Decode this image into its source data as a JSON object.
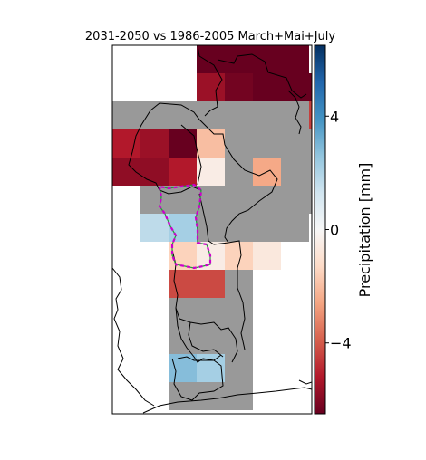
{
  "chart_data": {
    "type": "heatmap",
    "title": "2031-2050 vs 1986-2005 March+Mai+July",
    "colorbar": {
      "label": "Precipitation [mm]",
      "ticks": [
        "4",
        "0",
        "−4"
      ],
      "tick_values": [
        4,
        0,
        -4
      ],
      "range": [
        -6.5,
        6.5
      ],
      "colormap": "RdBu"
    },
    "masked_color": "#999999",
    "cells": [
      {
        "col": 3,
        "row": 0,
        "value": -6.5
      },
      {
        "col": 4,
        "row": 0,
        "value": -6.5
      },
      {
        "col": 5,
        "row": 0,
        "value": -6.5
      },
      {
        "col": 6,
        "row": 0,
        "value": -6.5
      },
      {
        "col": 3,
        "row": 1,
        "value": -5.6
      },
      {
        "col": 4,
        "row": 1,
        "value": -6.3
      },
      {
        "col": 5,
        "row": 1,
        "value": -6.5
      },
      {
        "col": 6,
        "row": 1,
        "value": -6.5
      },
      {
        "col": 7,
        "row": 1,
        "value": -6.5
      },
      {
        "col": 0,
        "row": 2,
        "value": null
      },
      {
        "col": 1,
        "row": 2,
        "value": null
      },
      {
        "col": 2,
        "row": 2,
        "value": null
      },
      {
        "col": 3,
        "row": 2,
        "value": null
      },
      {
        "col": 4,
        "row": 2,
        "value": null
      },
      {
        "col": 5,
        "row": 2,
        "value": null
      },
      {
        "col": 6,
        "row": 2,
        "value": null
      },
      {
        "col": 7,
        "row": 2,
        "value": -4.5
      },
      {
        "col": 0,
        "row": 3,
        "value": -5.2
      },
      {
        "col": 1,
        "row": 3,
        "value": -5.6
      },
      {
        "col": 2,
        "row": 3,
        "value": -6.5
      },
      {
        "col": 3,
        "row": 3,
        "value": -2.0
      },
      {
        "col": 4,
        "row": 3,
        "value": null
      },
      {
        "col": 5,
        "row": 3,
        "value": null
      },
      {
        "col": 6,
        "row": 3,
        "value": null
      },
      {
        "col": 7,
        "row": 3,
        "value": null
      },
      {
        "col": 0,
        "row": 4,
        "value": -5.8
      },
      {
        "col": 1,
        "row": 4,
        "value": -5.8
      },
      {
        "col": 2,
        "row": 4,
        "value": -5.2
      },
      {
        "col": 3,
        "row": 4,
        "value": -0.5
      },
      {
        "col": 4,
        "row": 4,
        "value": null
      },
      {
        "col": 5,
        "row": 4,
        "value": -2.5
      },
      {
        "col": 6,
        "row": 4,
        "value": null
      },
      {
        "col": 7,
        "row": 4,
        "value": null
      },
      {
        "col": 1,
        "row": 5,
        "value": null
      },
      {
        "col": 2,
        "row": 5,
        "value": null
      },
      {
        "col": 3,
        "row": 5,
        "value": null
      },
      {
        "col": 4,
        "row": 5,
        "value": null
      },
      {
        "col": 5,
        "row": 5,
        "value": null
      },
      {
        "col": 6,
        "row": 5,
        "value": null
      },
      {
        "col": 7,
        "row": 5,
        "value": null
      },
      {
        "col": 1,
        "row": 6,
        "value": 1.7
      },
      {
        "col": 2,
        "row": 6,
        "value": 2.2
      },
      {
        "col": 3,
        "row": 6,
        "value": null
      },
      {
        "col": 4,
        "row": 6,
        "value": null
      },
      {
        "col": 5,
        "row": 6,
        "value": null
      },
      {
        "col": 6,
        "row": 6,
        "value": null
      },
      {
        "col": 2,
        "row": 7,
        "value": -1.5
      },
      {
        "col": 3,
        "row": 7,
        "value": -0.5
      },
      {
        "col": 4,
        "row": 7,
        "value": -1.5
      },
      {
        "col": 5,
        "row": 7,
        "value": -0.7
      },
      {
        "col": 2,
        "row": 8,
        "value": -4.3
      },
      {
        "col": 3,
        "row": 8,
        "value": -4.3
      },
      {
        "col": 4,
        "row": 8,
        "value": null
      },
      {
        "col": 2,
        "row": 9,
        "value": null
      },
      {
        "col": 3,
        "row": 9,
        "value": null
      },
      {
        "col": 4,
        "row": 9,
        "value": null
      },
      {
        "col": 2,
        "row": 10,
        "value": null
      },
      {
        "col": 3,
        "row": 10,
        "value": null
      },
      {
        "col": 4,
        "row": 10,
        "value": null
      },
      {
        "col": 2,
        "row": 11,
        "value": 2.8
      },
      {
        "col": 3,
        "row": 11,
        "value": 2.2
      },
      {
        "col": 4,
        "row": 11,
        "value": null
      },
      {
        "col": 2,
        "row": 12,
        "value": null
      },
      {
        "col": 3,
        "row": 12,
        "value": null
      },
      {
        "col": 4,
        "row": 12,
        "value": null
      }
    ]
  }
}
